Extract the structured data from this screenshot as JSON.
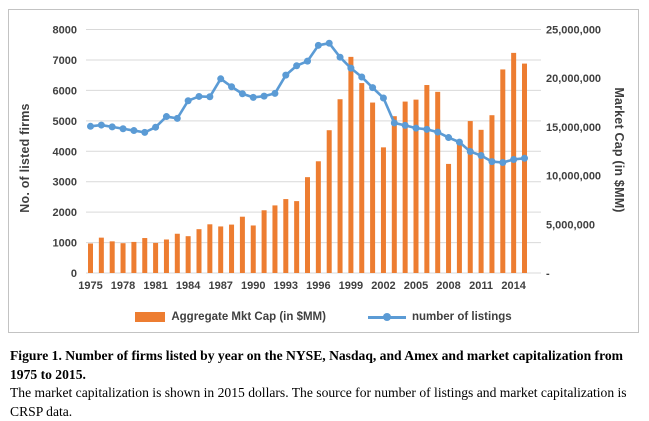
{
  "figure": {
    "caption_bold": "Figure 1. Number of firms listed by year on the NYSE, Nasdaq, and Amex and market capitalization from 1975 to 2015.",
    "caption_text": "The market capitalization is shown in 2015 dollars. The source for number of listings and market capitalization is CRSP data."
  },
  "chart_data": {
    "type": "bar",
    "subtype": "combo-bar-line-dual-axis",
    "x": [
      1975,
      1976,
      1977,
      1978,
      1979,
      1980,
      1981,
      1982,
      1983,
      1984,
      1985,
      1986,
      1987,
      1988,
      1989,
      1990,
      1991,
      1992,
      1993,
      1994,
      1995,
      1996,
      1997,
      1998,
      1999,
      2000,
      2001,
      2002,
      2003,
      2004,
      2005,
      2006,
      2007,
      2008,
      2009,
      2010,
      2011,
      2012,
      2013,
      2014,
      2015
    ],
    "x_tick_labels": [
      "1975",
      "1978",
      "1981",
      "1984",
      "1987",
      "1990",
      "1993",
      "1996",
      "1999",
      "2002",
      "2005",
      "2008",
      "2011",
      "2014"
    ],
    "series": [
      {
        "name": "Aggregate Mkt Cap (in $MM)",
        "type": "bar",
        "axis": "right",
        "color": "#ED7D31",
        "values": [
          3030000,
          3630000,
          3250000,
          3060000,
          3190000,
          3590000,
          3090000,
          3440000,
          4030000,
          3780000,
          4500000,
          5000000,
          4780000,
          4970000,
          5780000,
          4880000,
          6440000,
          6940000,
          7590000,
          7380000,
          9840000,
          11470000,
          14660000,
          17840000,
          22190000,
          19500000,
          17500000,
          12900000,
          16100000,
          17600000,
          17800000,
          19300000,
          18600000,
          11200000,
          13600000,
          15600000,
          14700000,
          16200000,
          20900000,
          22600000,
          21500000
        ]
      },
      {
        "name": "number of listings",
        "type": "line",
        "axis": "left",
        "color": "#5B9BD5",
        "values": [
          4820,
          4860,
          4800,
          4740,
          4680,
          4620,
          4790,
          5140,
          5080,
          5660,
          5800,
          5790,
          6380,
          6120,
          5890,
          5770,
          5810,
          5900,
          6500,
          6810,
          6960,
          7480,
          7550,
          7090,
          6730,
          6440,
          6090,
          5750,
          4930,
          4850,
          4760,
          4720,
          4630,
          4450,
          4300,
          3990,
          3860,
          3660,
          3630,
          3730,
          3770
        ]
      }
    ],
    "left_axis": {
      "title": "No. of listed firms",
      "min": 0,
      "max": 8000,
      "step": 1000,
      "tick_labels": [
        "8000",
        "7000",
        "6000",
        "5000",
        "4000",
        "3000",
        "2000",
        "1000",
        "0"
      ]
    },
    "right_axis": {
      "title": "Market Cap (in $MM)",
      "min": 0,
      "max": 25000000,
      "step": 5000000,
      "tick_labels": [
        "25,000,000",
        "20,000,000",
        "15,000,000",
        "10,000,000",
        "5,000,000",
        "-"
      ]
    },
    "grid": "horizontal",
    "grid_color": "#D9D9D9",
    "tick_color": "#404040",
    "legend_position": "bottom"
  }
}
